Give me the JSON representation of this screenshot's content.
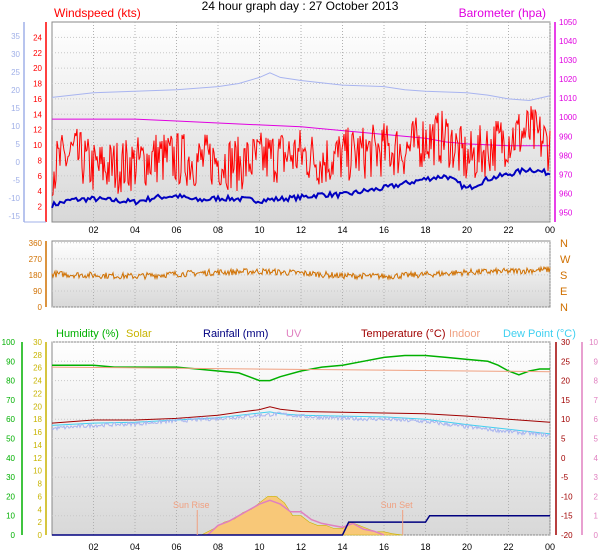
{
  "title": "24 hour graph day : 27 October 2013",
  "x_ticks": [
    "02",
    "04",
    "06",
    "08",
    "10",
    "12",
    "14",
    "16",
    "18",
    "20",
    "22",
    "00"
  ],
  "colors": {
    "wind": "#ff0000",
    "gust_axis": "#a0b0e8",
    "wind_low": "#0000c0",
    "baro": "#e000e0",
    "pale": "#a8b4f0",
    "dir": "#d07000",
    "humidity": "#00b000",
    "solar": "#c8b400",
    "rainfall": "#000080",
    "uv": "#e080c0",
    "temperature": "#a00000",
    "indoor": "#f0a080",
    "dewpoint": "#40d0f0",
    "solar_fill": "#f8c878"
  },
  "chart_data": [
    {
      "type": "line",
      "name": "wind-baro",
      "left_label": "Windspeed (kts)",
      "right_label": "Barometer (hpa)",
      "ylim": [
        0,
        26
      ],
      "left_ticks": [
        2,
        4,
        6,
        8,
        10,
        12,
        14,
        16,
        18,
        20,
        22,
        24
      ],
      "gust_ticks": [
        -15,
        -10,
        -5,
        0,
        5,
        10,
        15,
        20,
        25,
        30,
        35
      ],
      "baro_ylim": [
        945,
        1050
      ],
      "baro_ticks": [
        950,
        960,
        970,
        980,
        990,
        1000,
        1010,
        1020,
        1030,
        1040,
        1050
      ],
      "series": [
        {
          "key": "pale",
          "x": [
            0,
            2,
            4,
            6,
            8,
            9,
            10,
            10.5,
            11,
            12,
            14,
            16,
            17,
            18,
            20,
            21,
            22,
            23,
            24
          ],
          "values": [
            16.2,
            16.8,
            17.0,
            17.2,
            17.6,
            18.0,
            18.8,
            19.4,
            18.8,
            18.4,
            17.8,
            17.6,
            17.2,
            17.0,
            16.8,
            16.5,
            16.0,
            15.8,
            16.4
          ]
        },
        {
          "key": "baro",
          "x": [
            0,
            2,
            4,
            6,
            8,
            10,
            12,
            14,
            16,
            18,
            19,
            20,
            22,
            23,
            24
          ],
          "values": [
            999,
            999,
            999,
            998,
            997,
            996,
            995,
            993,
            991,
            989,
            987,
            986,
            985,
            985,
            985
          ]
        },
        {
          "key": "wind_low",
          "x": [
            0,
            1,
            2,
            3,
            4,
            5,
            6,
            7,
            8,
            9,
            10,
            11,
            12,
            13,
            14,
            15,
            16,
            17,
            18,
            19,
            20,
            21,
            22,
            23,
            24
          ],
          "values": [
            2.2,
            2.9,
            3.0,
            2.8,
            2.6,
            3.2,
            3.4,
            2.8,
            3.1,
            3.0,
            2.8,
            3.0,
            3.2,
            3.6,
            3.5,
            4.0,
            4.4,
            5.0,
            5.6,
            6.0,
            4.3,
            5.6,
            6.2,
            6.9,
            6.3
          ]
        },
        {
          "key": "wind",
          "x": [
            0,
            1,
            2,
            3,
            4,
            5,
            6,
            7,
            8,
            9,
            10,
            11,
            12,
            13,
            14,
            15,
            16,
            17,
            18,
            19,
            20,
            21,
            22,
            23,
            24
          ],
          "values": [
            7.0,
            9.0,
            7.0,
            7.2,
            7.6,
            8.4,
            8.2,
            8.0,
            8.0,
            7.5,
            8.2,
            8.6,
            8.8,
            8.0,
            8.6,
            9.0,
            9.4,
            9.3,
            10.8,
            11.0,
            8.0,
            9.6,
            11.0,
            11.8,
            10.0
          ]
        }
      ]
    },
    {
      "type": "line",
      "name": "wind-direction",
      "ylim": [
        0,
        370
      ],
      "left_ticks": [
        0,
        90,
        180,
        270,
        360
      ],
      "right_ticks": [
        "N",
        "E",
        "S",
        "W",
        "N"
      ],
      "series": [
        {
          "key": "dir",
          "x": [
            0,
            2,
            4,
            6,
            8,
            10,
            12,
            14,
            16,
            18,
            20,
            22,
            24
          ],
          "values": [
            185,
            178,
            172,
            185,
            195,
            200,
            190,
            175,
            172,
            182,
            195,
            200,
            210
          ]
        }
      ]
    },
    {
      "type": "line",
      "name": "humidity-temp",
      "legend": [
        "Humidity (%)",
        "Solar",
        "Rainfall (mm)",
        "UV",
        "Temperature (°C)",
        "Indoor",
        "Dew Point (°C)"
      ],
      "annotations": [
        "Sun Rise",
        "Sun Set"
      ],
      "sun_rise_x": 7.0,
      "sun_set_x": 16.9,
      "humidity_ylim": [
        0,
        100
      ],
      "humidity_ticks": [
        0,
        10,
        20,
        30,
        40,
        50,
        60,
        70,
        80,
        90,
        100
      ],
      "solar_ticks": [
        0,
        2,
        4,
        6,
        8,
        10,
        12,
        14,
        16,
        18,
        20,
        22,
        24,
        26,
        28,
        30
      ],
      "temp_ylim": [
        -20,
        30
      ],
      "temp_ticks": [
        -20,
        -15,
        -10,
        -5,
        0,
        5,
        10,
        15,
        20,
        25,
        30
      ],
      "uv_ylim": [
        0,
        10
      ],
      "uv_ticks": [
        0,
        1,
        2,
        3,
        4,
        5,
        6,
        7,
        8,
        9,
        10
      ],
      "series": [
        {
          "key": "humidity",
          "x": [
            0,
            1,
            2,
            3,
            4,
            5,
            6,
            7,
            8,
            9,
            9.5,
            10,
            10.5,
            11,
            12,
            13,
            14,
            15,
            16,
            17,
            18,
            19,
            20,
            21,
            21.5,
            22,
            22.5,
            23,
            23.5,
            24
          ],
          "values": [
            88,
            88,
            88,
            87,
            87,
            87,
            87,
            86,
            85,
            84,
            82,
            80,
            80,
            82,
            85,
            87,
            88,
            90,
            92,
            93,
            93,
            92,
            91,
            90,
            88,
            85,
            83,
            85,
            86,
            86
          ]
        },
        {
          "key": "indoor",
          "x": [
            0,
            24
          ],
          "values": [
            23.5,
            22.3
          ]
        },
        {
          "key": "temperature",
          "x": [
            0,
            2,
            4,
            6,
            8,
            9,
            10,
            10.5,
            11,
            12,
            14,
            16,
            18,
            20,
            22,
            24
          ],
          "values": [
            9.0,
            9.8,
            9.8,
            10.2,
            11.0,
            11.8,
            12.5,
            13.2,
            12.6,
            12.0,
            11.8,
            11.6,
            11.4,
            10.8,
            10.0,
            9.2
          ]
        },
        {
          "key": "dewpoint",
          "x": [
            0,
            2,
            4,
            6,
            8,
            10,
            10.5,
            11,
            12,
            14,
            16,
            18,
            20,
            22,
            24
          ],
          "values": [
            8.4,
            9.0,
            9.2,
            9.8,
            10.4,
            11.6,
            11.9,
            11.4,
            11.0,
            10.8,
            10.6,
            10.0,
            8.6,
            7.4,
            6.2
          ]
        },
        {
          "key": "pale",
          "x": [
            0,
            2,
            4,
            6,
            8,
            10,
            11,
            12,
            14,
            16,
            18,
            20,
            22,
            24
          ],
          "values": [
            7.6,
            8.4,
            8.8,
            9.6,
            10.2,
            11.0,
            11.4,
            10.8,
            10.2,
            10.0,
            9.4,
            8.0,
            6.8,
            5.8
          ]
        },
        {
          "key": "solar",
          "x": [
            7.2,
            7.8,
            8.3,
            8.8,
            9.2,
            9.6,
            10.0,
            10.4,
            10.8,
            11.2,
            11.6,
            12.0,
            12.4,
            12.8,
            13.2,
            13.6,
            14.0,
            14.4,
            14.8,
            15.2,
            15.6,
            16.0,
            16.4,
            16.9
          ],
          "values": [
            0,
            1,
            2,
            2.5,
            3.5,
            4,
            5,
            6,
            6,
            5,
            3,
            3,
            2,
            1.5,
            1.5,
            1,
            1,
            2,
            1.5,
            1,
            0.5,
            0.5,
            0.2,
            0
          ]
        },
        {
          "key": "uv",
          "x": [
            7.5,
            8,
            8.5,
            9,
            9.5,
            10,
            10.5,
            11,
            11.5,
            12,
            12.5,
            13,
            13.5,
            14,
            14.5,
            15,
            15.5,
            16
          ],
          "values": [
            0,
            0.5,
            0.7,
            1.0,
            1.3,
            1.6,
            1.8,
            1.6,
            1.2,
            1.2,
            0.8,
            0.6,
            0.5,
            0.4,
            0.6,
            0.3,
            0.2,
            0
          ]
        },
        {
          "key": "rainfall",
          "x": [
            0,
            14,
            14.3,
            18,
            18.2,
            24
          ],
          "values": [
            0,
            0,
            2,
            2,
            3,
            3
          ]
        }
      ]
    }
  ]
}
